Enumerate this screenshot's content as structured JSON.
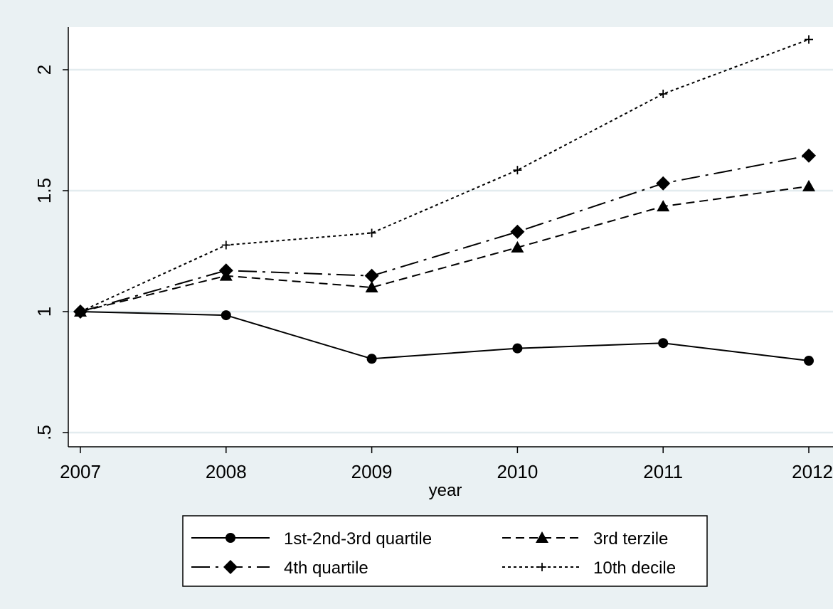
{
  "chart_data": {
    "type": "line",
    "title": "",
    "xlabel": "year",
    "ylabel": "",
    "x": [
      2007,
      2008,
      2009,
      2010,
      2011,
      2012
    ],
    "xticks": [
      "2007",
      "2008",
      "2009",
      "2010",
      "2011",
      "2012"
    ],
    "yticks": [
      ".5",
      "1",
      "1.5",
      "2"
    ],
    "ytick_values": [
      0.5,
      1,
      1.5,
      2
    ],
    "xlim": [
      2006.92,
      2012.08
    ],
    "ylim": [
      0.47,
      2.18
    ],
    "grid": true,
    "legend_position": "bottom",
    "series": [
      {
        "name": "1st-2nd-3rd quartile",
        "marker": "circle",
        "dash": "solid",
        "values": [
          1.0,
          0.985,
          0.805,
          0.848,
          0.87,
          0.797
        ]
      },
      {
        "name": "3rd terzile",
        "marker": "triangle",
        "dash": "dashed",
        "values": [
          1.0,
          1.148,
          1.1,
          1.265,
          1.435,
          1.518
        ]
      },
      {
        "name": "4th quartile",
        "marker": "diamond",
        "dash": "longdash-dot",
        "values": [
          1.0,
          1.17,
          1.148,
          1.33,
          1.53,
          1.645
        ]
      },
      {
        "name": "10th decile",
        "marker": "plus",
        "dash": "dotted",
        "values": [
          1.0,
          1.275,
          1.325,
          1.585,
          1.9,
          2.125
        ]
      }
    ]
  }
}
